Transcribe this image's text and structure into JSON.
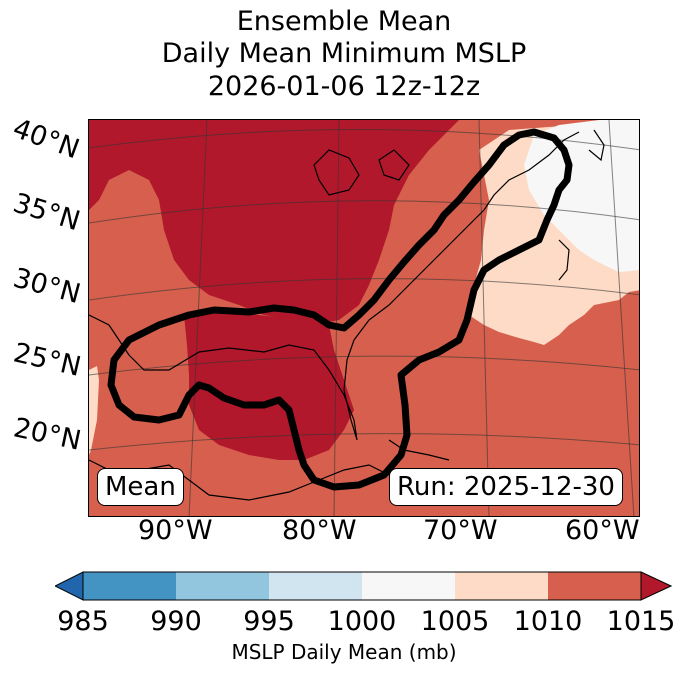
{
  "title": {
    "line1": "Ensemble Mean",
    "line2": "Daily Mean Minimum MSLP",
    "line3": "2026-01-06 12z-12z"
  },
  "map": {
    "lat_labels": [
      "40°N",
      "35°N",
      "30°N",
      "25°N",
      "20°N"
    ],
    "lon_labels": [
      "90°W",
      "80°W",
      "70°W",
      "60°W"
    ],
    "mean_box": "Mean",
    "run_box": "Run: 2025-12-30",
    "fill_colors": {
      "1010_1015": "#b2182b",
      "1005_1010": "#d6604d",
      "1000_1005": "#fddbc7",
      "995_1000": "#f7f7f7"
    },
    "outline_color": "#000000"
  },
  "colorbar": {
    "ticks": [
      "985",
      "990",
      "995",
      "1000",
      "1005",
      "1010",
      "1015"
    ],
    "label": "MSLP Daily Mean (mb)",
    "colors": [
      "#4393c3",
      "#92c5de",
      "#d1e5f0",
      "#f7f7f7",
      "#fddbc7",
      "#d6604d"
    ],
    "under_color": "#2166ac",
    "over_color": "#b2182b"
  }
}
